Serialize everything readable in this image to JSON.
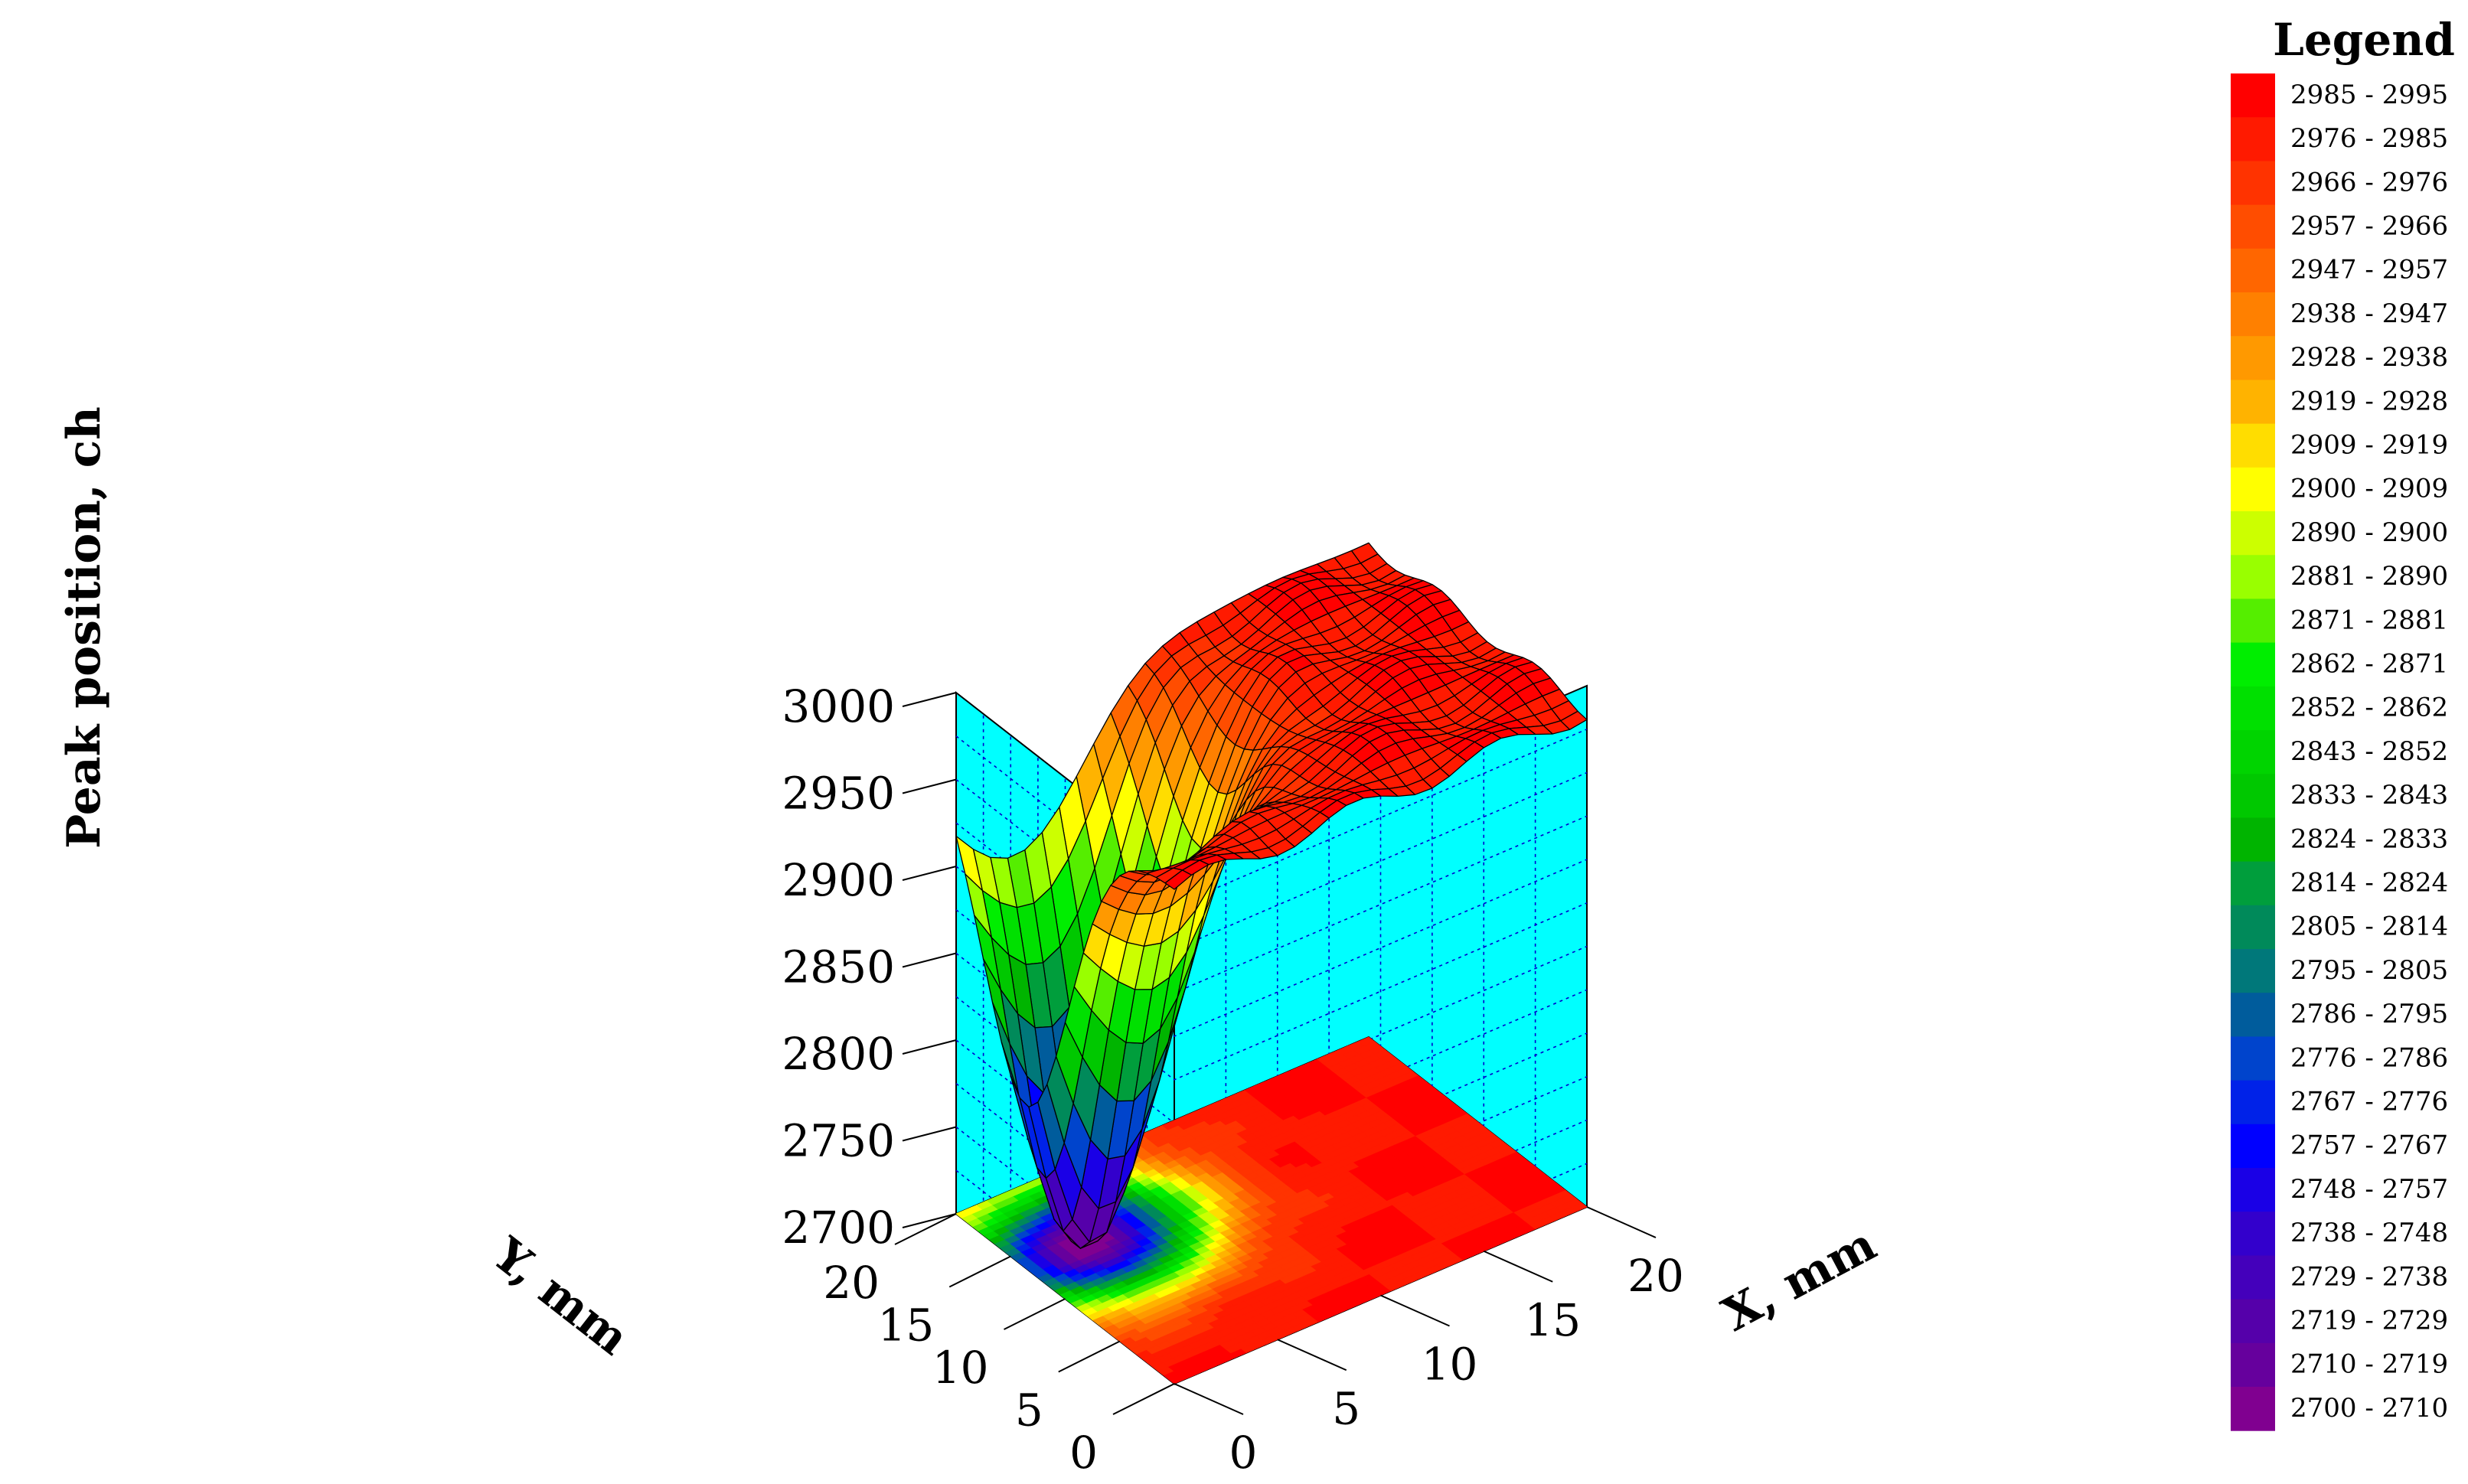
{
  "chart_data": {
    "type": "surface3d",
    "title": "",
    "xlabel": "X, mm",
    "ylabel": "Y, mm",
    "zlabel": "Peak position, ch",
    "xlim": [
      0,
      20
    ],
    "ylim": [
      0,
      20
    ],
    "zlim": [
      2700,
      3000
    ],
    "x_ticks": [
      0,
      5,
      10,
      15,
      20
    ],
    "y_ticks": [
      0,
      5,
      10,
      15,
      20
    ],
    "z_ticks": [
      2700,
      2750,
      2800,
      2850,
      2900,
      2950,
      3000
    ],
    "grid": true,
    "projection_floor": "filled contour map of the same surface",
    "legend": {
      "title": "Legend",
      "placement": "right",
      "entries": [
        {
          "label": "2985 - 2995",
          "color": "#ff0000"
        },
        {
          "label": "2976 - 2985",
          "color": "#ff1a00"
        },
        {
          "label": "2966 - 2976",
          "color": "#ff3300"
        },
        {
          "label": "2957 - 2966",
          "color": "#ff4d00"
        },
        {
          "label": "2947 - 2957",
          "color": "#ff6600"
        },
        {
          "label": "2938 - 2947",
          "color": "#ff8000"
        },
        {
          "label": "2928 - 2938",
          "color": "#ff9900"
        },
        {
          "label": "2919 - 2928",
          "color": "#ffb300"
        },
        {
          "label": "2909 - 2919",
          "color": "#ffdd00"
        },
        {
          "label": "2900 - 2909",
          "color": "#ffff00"
        },
        {
          "label": "2890 - 2900",
          "color": "#ccff00"
        },
        {
          "label": "2881 - 2890",
          "color": "#99ff00"
        },
        {
          "label": "2871 - 2881",
          "color": "#55ee00"
        },
        {
          "label": "2862 - 2871",
          "color": "#00ee00"
        },
        {
          "label": "2852 - 2862",
          "color": "#00e000"
        },
        {
          "label": "2843 - 2852",
          "color": "#00d400"
        },
        {
          "label": "2833 - 2843",
          "color": "#00c800"
        },
        {
          "label": "2824 - 2833",
          "color": "#00b400"
        },
        {
          "label": "2814 - 2824",
          "color": "#009e3c"
        },
        {
          "label": "2805 - 2814",
          "color": "#008a5a"
        },
        {
          "label": "2795 - 2805",
          "color": "#00787a"
        },
        {
          "label": "2786 - 2795",
          "color": "#005c9c"
        },
        {
          "label": "2776 - 2786",
          "color": "#0044cc"
        },
        {
          "label": "2767 - 2776",
          "color": "#0022e8"
        },
        {
          "label": "2757 - 2767",
          "color": "#0000ff"
        },
        {
          "label": "2748 - 2757",
          "color": "#1a00e6"
        },
        {
          "label": "2738 - 2748",
          "color": "#3300cc"
        },
        {
          "label": "2729 - 2738",
          "color": "#4400bb"
        },
        {
          "label": "2719 - 2729",
          "color": "#5500aa"
        },
        {
          "label": "2710 - 2719",
          "color": "#66009d"
        },
        {
          "label": "2700 - 2710",
          "color": "#800090"
        }
      ]
    },
    "surface_summary": {
      "plateau_value": 2985,
      "minimum": {
        "x": 3,
        "y": 13.5,
        "z": 2700
      },
      "maximum_range": "2985 - 2995"
    },
    "colors": {
      "walls": "#00ffff",
      "edge_lines": "#000000",
      "grid_lines": "#0000cc"
    }
  }
}
